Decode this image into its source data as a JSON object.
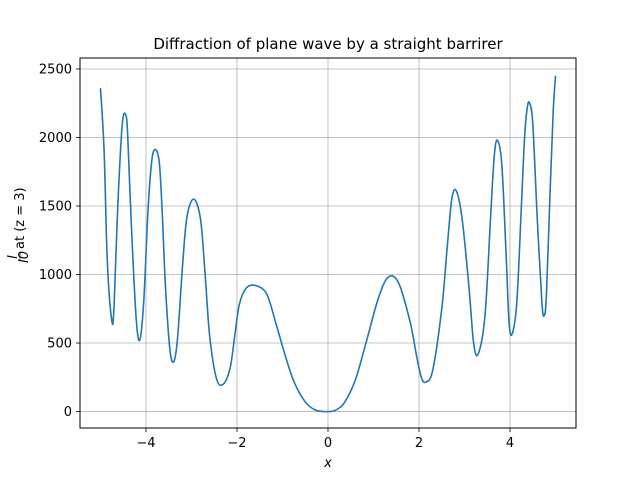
{
  "chart_data": {
    "type": "line",
    "title": "Diffraction of plane wave by a straight barrirer",
    "xlabel": "x",
    "ylabel": {
      "fraction_numerator": "I",
      "fraction_denominator": "I0",
      "text": "at (z = 3)"
    },
    "xlim": [
      -5.45,
      5.45
    ],
    "ylim": [
      -120,
      2580
    ],
    "x_ticks": [
      -4,
      -2,
      0,
      2,
      4
    ],
    "x_tick_labels": [
      "−4",
      "−2",
      "0",
      "2",
      "4"
    ],
    "y_ticks": [
      0,
      500,
      1000,
      1500,
      2000,
      2500
    ],
    "y_tick_labels": [
      "0",
      "500",
      "1000",
      "1500",
      "2000",
      "2500"
    ],
    "grid": true,
    "line_color": "#1f77b4",
    "series": [
      {
        "x": [
          -5.0,
          -4.92,
          -4.85,
          -4.75,
          -4.7,
          -4.62,
          -4.52,
          -4.44,
          -4.4,
          -4.32,
          -4.22,
          -4.14,
          -4.05,
          -3.95,
          -3.85,
          -3.72,
          -3.65,
          -3.57,
          -3.47,
          -3.38,
          -3.3,
          -3.2,
          -3.1,
          -2.95,
          -2.8,
          -2.7,
          -2.6,
          -2.45,
          -2.3,
          -2.15,
          -2.05,
          -1.95,
          -1.8,
          -1.6,
          -1.35,
          -1.15,
          -0.95,
          -0.75,
          -0.5,
          -0.3,
          -0.15,
          0.0,
          0.15,
          0.35,
          0.6,
          0.85,
          1.1,
          1.32,
          1.55,
          1.8,
          1.95,
          2.05,
          2.15,
          2.3,
          2.5,
          2.62,
          2.72,
          2.82,
          2.95,
          3.1,
          3.2,
          3.3,
          3.45,
          3.57,
          3.65,
          3.72,
          3.82,
          3.92,
          3.98,
          4.05,
          4.15,
          4.25,
          4.32,
          4.38,
          4.43,
          4.5,
          4.6,
          4.7,
          4.75,
          4.8,
          4.88,
          4.95,
          5.0
        ],
        "y": [
          2360,
          1900,
          1100,
          660,
          780,
          1500,
          2100,
          2160,
          2000,
          1350,
          700,
          520,
          800,
          1500,
          1880,
          1850,
          1500,
          900,
          440,
          370,
          560,
          1050,
          1420,
          1550,
          1400,
          1000,
          550,
          240,
          200,
          320,
          550,
          780,
          900,
          920,
          860,
          650,
          420,
          220,
          70,
          15,
          2,
          0,
          8,
          60,
          230,
          520,
          820,
          980,
          940,
          660,
          400,
          250,
          215,
          300,
          750,
          1200,
          1550,
          1610,
          1400,
          900,
          500,
          420,
          700,
          1400,
          1850,
          1980,
          1800,
          1100,
          640,
          570,
          800,
          1500,
          2000,
          2220,
          2250,
          2100,
          1400,
          800,
          700,
          850,
          1600,
          2200,
          2450
        ]
      }
    ]
  }
}
